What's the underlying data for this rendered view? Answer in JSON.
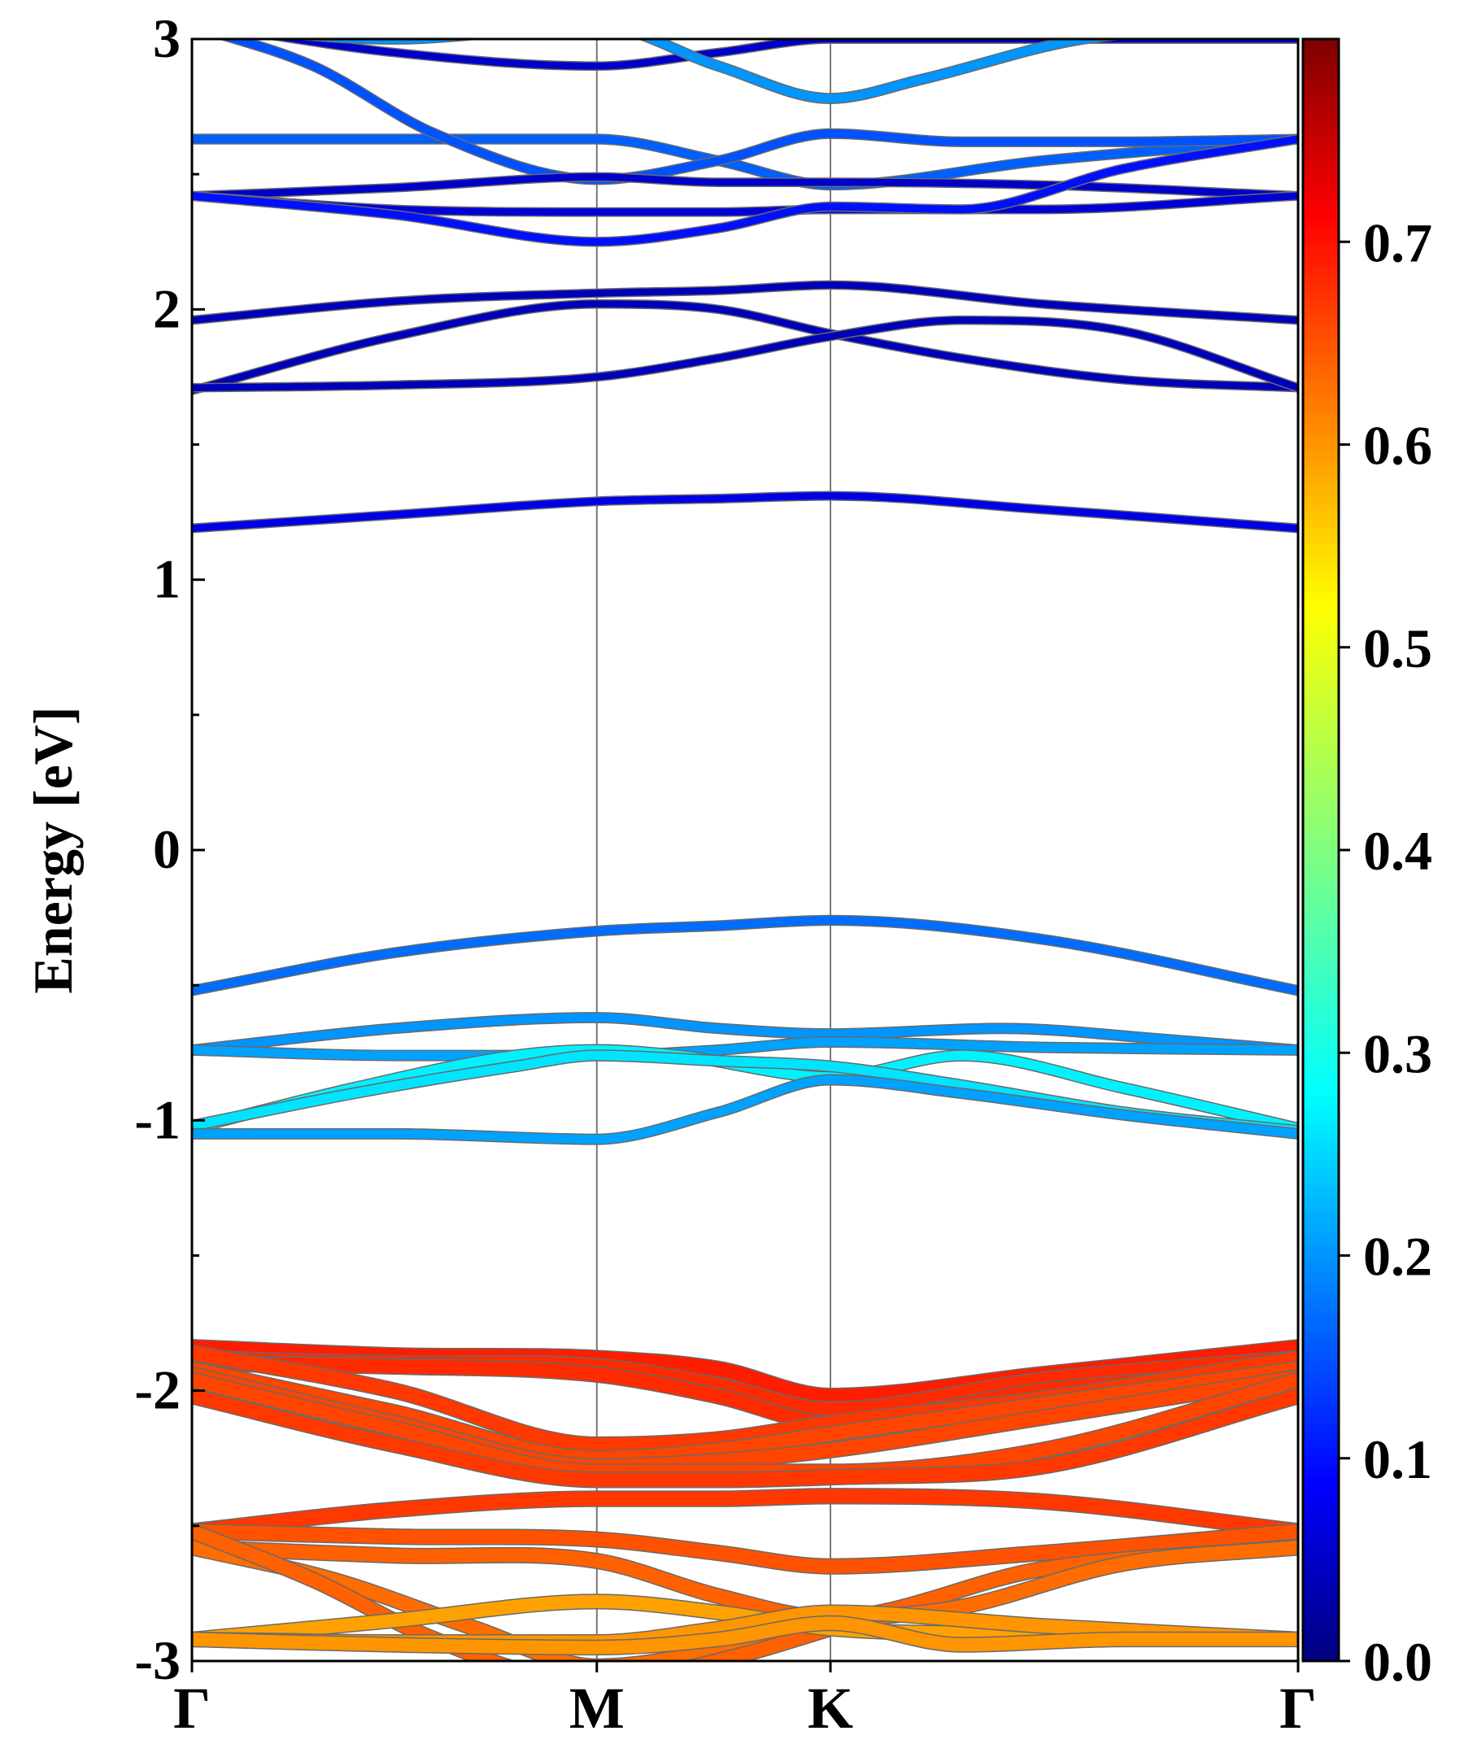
{
  "chart_data": {
    "type": "line",
    "title": "",
    "xlabel": "",
    "ylabel": "Energy [eV]",
    "ylim": [
      -3,
      3
    ],
    "kpoints": [
      {
        "label": "Γ",
        "pos": 0
      },
      {
        "label": "M",
        "pos": 1
      },
      {
        "label": "K",
        "pos": 1.577
      },
      {
        "label": "Γ",
        "pos": 2.732
      }
    ],
    "yticks": [
      -3,
      -2,
      -1,
      0,
      1,
      2,
      3
    ],
    "colorbar": {
      "range": [
        0.0,
        0.8
      ],
      "ticks": [
        "0.0",
        "0.1",
        "0.2",
        "0.3",
        "0.4",
        "0.5",
        "0.6",
        "0.7"
      ],
      "colormap": "jet"
    },
    "series": [
      {
        "x": [
          0,
          0.5,
          1,
          1.3,
          1.577,
          2.1,
          2.732
        ],
        "y": [
          3.06,
          2.95,
          2.9,
          2.95,
          3.0,
          3.0,
          3.0
        ],
        "w": 0.05
      },
      {
        "x": [
          0,
          0.5,
          1,
          1.3,
          1.577,
          2.1,
          2.732
        ],
        "y": [
          2.63,
          2.63,
          2.63,
          2.55,
          2.46,
          2.55,
          2.63
        ],
        "w": 0.16
      },
      {
        "x": [
          0,
          0.3,
          0.6,
          1,
          1.3,
          1.577,
          1.9,
          2.3,
          2.732
        ],
        "y": [
          3.05,
          2.9,
          2.65,
          2.48,
          2.55,
          2.65,
          2.62,
          2.62,
          2.63
        ],
        "w": 0.15
      },
      {
        "x": [
          0,
          0.5,
          1,
          1.3,
          1.577,
          2.1,
          2.732
        ],
        "y": [
          2.42,
          2.45,
          2.49,
          2.47,
          2.47,
          2.46,
          2.42
        ],
        "w": 0.05
      },
      {
        "x": [
          0,
          0.5,
          1,
          1.3,
          1.577,
          2.1,
          2.732
        ],
        "y": [
          2.42,
          2.37,
          2.36,
          2.36,
          2.37,
          2.37,
          2.42
        ],
        "w": 0.06
      },
      {
        "x": [
          0,
          0.5,
          1,
          1.3,
          1.577,
          1.9,
          2.3,
          2.732
        ],
        "y": [
          2.42,
          2.35,
          2.25,
          2.3,
          2.38,
          2.37,
          2.52,
          2.63
        ],
        "w": 0.1
      },
      {
        "x": [
          0,
          0.5,
          1,
          1.3,
          1.577,
          1.8,
          2.2,
          2.732
        ],
        "y": [
          3.05,
          3.0,
          3.05,
          2.9,
          2.78,
          2.85,
          3.0,
          3.05
        ],
        "w": 0.2
      },
      {
        "x": [
          0,
          0.5,
          1,
          1.3,
          1.577,
          2.1,
          2.732
        ],
        "y": [
          1.96,
          2.03,
          2.06,
          2.07,
          2.09,
          2.02,
          1.96
        ],
        "w": 0.04
      },
      {
        "x": [
          0,
          0.5,
          1,
          1.3,
          1.577,
          1.9,
          2.3,
          2.732
        ],
        "y": [
          1.7,
          1.9,
          2.02,
          2.0,
          1.91,
          1.82,
          1.74,
          1.71
        ],
        "w": 0.04
      },
      {
        "x": [
          0,
          0.5,
          1,
          1.3,
          1.577,
          1.9,
          2.3,
          2.732
        ],
        "y": [
          1.71,
          1.72,
          1.75,
          1.82,
          1.9,
          1.96,
          1.92,
          1.71
        ],
        "w": 0.04
      },
      {
        "x": [
          0,
          0.5,
          1,
          1.3,
          1.577,
          2.1,
          2.732
        ],
        "y": [
          1.19,
          1.24,
          1.29,
          1.3,
          1.31,
          1.26,
          1.19
        ],
        "w": 0.07
      },
      {
        "x": [
          0,
          0.5,
          1,
          1.3,
          1.577,
          2.1,
          2.732
        ],
        "y": [
          -0.52,
          -0.38,
          -0.3,
          -0.28,
          -0.26,
          -0.33,
          -0.52
        ],
        "w": 0.17
      },
      {
        "x": [
          0,
          0.5,
          1,
          1.3,
          1.577,
          2.0,
          2.4,
          2.732
        ],
        "y": [
          -0.74,
          -0.66,
          -0.62,
          -0.66,
          -0.68,
          -0.66,
          -0.7,
          -0.74
        ],
        "w": 0.2
      },
      {
        "x": [
          0,
          0.5,
          1,
          1.3,
          1.577,
          2.1,
          2.732
        ],
        "y": [
          -0.74,
          -0.76,
          -0.76,
          -0.74,
          -0.71,
          -0.73,
          -0.74
        ],
        "w": 0.21
      },
      {
        "x": [
          0,
          0.4,
          0.8,
          1,
          1.2,
          1.577,
          1.9,
          2.3,
          2.732
        ],
        "y": [
          -1.03,
          -0.88,
          -0.76,
          -0.74,
          -0.76,
          -0.84,
          -0.76,
          -0.88,
          -1.03
        ],
        "w": 0.27
      },
      {
        "x": [
          0,
          0.4,
          0.8,
          1,
          1.3,
          1.577,
          1.9,
          2.3,
          2.732
        ],
        "y": [
          -1.02,
          -0.9,
          -0.8,
          -0.76,
          -0.78,
          -0.8,
          -0.87,
          -0.97,
          -1.04
        ],
        "w": 0.26
      },
      {
        "x": [
          0,
          0.5,
          1,
          1.3,
          1.577,
          1.9,
          2.3,
          2.732
        ],
        "y": [
          -1.05,
          -1.05,
          -1.07,
          -0.97,
          -0.85,
          -0.9,
          -0.98,
          -1.05
        ],
        "w": 0.21
      },
      {
        "x": [
          0,
          0.5,
          1,
          1.3,
          1.577,
          2.1,
          2.732
        ],
        "y": [
          -1.84,
          -1.87,
          -1.88,
          -1.92,
          -2.02,
          -1.94,
          -1.84
        ],
        "w": 0.69
      },
      {
        "x": [
          0,
          0.5,
          1,
          1.3,
          1.577,
          2.1,
          2.732
        ],
        "y": [
          -1.88,
          -1.9,
          -1.91,
          -1.98,
          -2.07,
          -1.96,
          -1.88
        ],
        "w": 0.68
      },
      {
        "x": [
          0,
          0.5,
          1,
          1.3,
          1.577,
          2.1,
          2.732
        ],
        "y": [
          -1.9,
          -1.91,
          -1.94,
          -2.02,
          -2.12,
          -2.0,
          -1.93
        ],
        "w": 0.68
      },
      {
        "x": [
          0,
          0.5,
          1,
          1.3,
          1.577,
          2.1,
          2.732
        ],
        "y": [
          -1.86,
          -2.0,
          -2.2,
          -2.18,
          -2.12,
          -2.03,
          -1.88
        ],
        "w": 0.67
      },
      {
        "x": [
          0,
          0.5,
          1,
          1.3,
          1.577,
          2.1,
          2.732
        ],
        "y": [
          -1.92,
          -2.08,
          -2.25,
          -2.22,
          -2.16,
          -2.05,
          -1.92
        ],
        "w": 0.66
      },
      {
        "x": [
          0,
          0.5,
          1,
          1.3,
          1.577,
          2.1,
          2.732
        ],
        "y": [
          -1.94,
          -2.12,
          -2.28,
          -2.26,
          -2.22,
          -2.1,
          -1.95
        ],
        "w": 0.66
      },
      {
        "x": [
          0,
          0.5,
          1,
          1.3,
          1.577,
          2.1,
          2.732
        ],
        "y": [
          -1.96,
          -2.14,
          -2.3,
          -2.3,
          -2.3,
          -2.22,
          -1.96
        ],
        "w": 0.66
      },
      {
        "x": [
          0,
          0.5,
          1,
          1.3,
          1.577,
          2.1,
          2.732
        ],
        "y": [
          -2.02,
          -2.2,
          -2.33,
          -2.33,
          -2.32,
          -2.28,
          -2.02
        ],
        "w": 0.67
      },
      {
        "x": [
          0,
          0.5,
          1,
          1.3,
          1.577,
          2.1,
          2.732
        ],
        "y": [
          -2.52,
          -2.44,
          -2.4,
          -2.4,
          -2.39,
          -2.41,
          -2.52
        ],
        "w": 0.67
      },
      {
        "x": [
          0,
          0.5,
          1,
          1.3,
          1.577,
          2.1,
          2.732
        ],
        "y": [
          -2.52,
          -2.54,
          -2.55,
          -2.6,
          -2.65,
          -2.6,
          -2.52
        ],
        "w": 0.65
      },
      {
        "x": [
          0,
          0.5,
          1,
          1.3,
          1.577,
          2.1,
          2.732
        ],
        "y": [
          -2.58,
          -2.61,
          -2.63,
          -2.76,
          -2.84,
          -2.66,
          -2.58
        ],
        "w": 0.64
      },
      {
        "x": [
          0,
          0.35,
          0.7,
          1,
          1.3,
          1.577,
          1.9,
          2.3,
          2.732
        ],
        "y": [
          -2.58,
          -2.7,
          -2.88,
          -3.02,
          -2.96,
          -2.86,
          -2.8,
          -2.64,
          -2.58
        ],
        "w": 0.63
      },
      {
        "x": [
          0,
          0.3,
          0.6,
          0.9,
          1.1,
          1.35,
          1.577
        ],
        "y": [
          -2.52,
          -2.7,
          -2.92,
          -3.05,
          -3.05,
          -2.98,
          -2.88
        ],
        "w": 0.64
      },
      {
        "x": [
          0,
          0.5,
          1,
          1.3,
          1.577,
          2.1,
          2.732
        ],
        "y": [
          -2.92,
          -2.85,
          -2.78,
          -2.82,
          -2.88,
          -2.9,
          -2.92
        ],
        "w": 0.59
      },
      {
        "x": [
          0,
          0.5,
          1,
          1.3,
          1.577,
          2.1,
          2.732
        ],
        "y": [
          -2.92,
          -2.93,
          -2.93,
          -2.88,
          -2.82,
          -2.87,
          -2.92
        ],
        "w": 0.6
      },
      {
        "x": [
          0,
          0.5,
          1,
          1.3,
          1.577,
          1.9,
          2.3,
          2.732
        ],
        "y": [
          -2.92,
          -2.94,
          -2.95,
          -2.92,
          -2.86,
          -2.94,
          -2.92,
          -2.92
        ],
        "w": 0.6
      }
    ]
  }
}
